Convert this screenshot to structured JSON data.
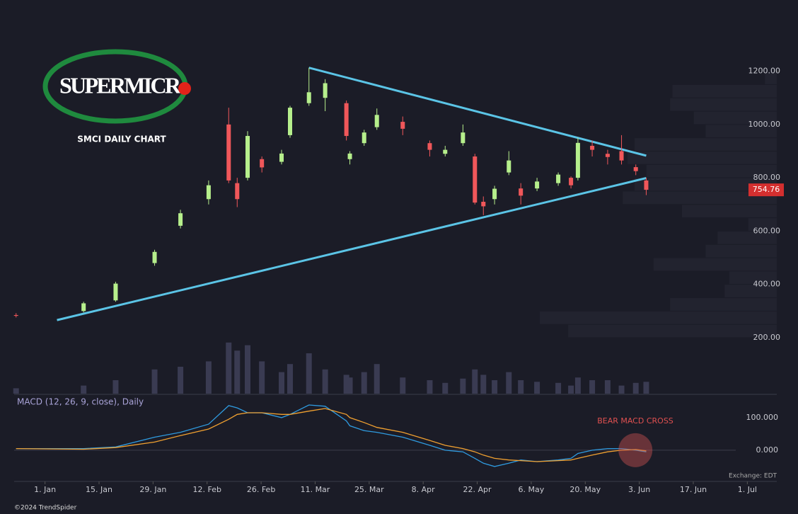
{
  "chart_data": {
    "type": "candlestick",
    "logo": "SUPERMICR",
    "title": "SMCI DAILY CHART",
    "macd_label": "MACD (12, 26, 9, close), Daily",
    "annotation": "BEAR MACD CROSS",
    "exchange": "Exchange: EDT",
    "copyright": "©2024 TrendSpider",
    "last_price": {
      "value": 754.76,
      "label": "754.76"
    },
    "up_color": "#b6ef8c",
    "down_color": "#f0575a",
    "xlim": [
      -8,
      190
    ],
    "xticks": [
      {
        "value": 0,
        "label": "1. Jan"
      },
      {
        "value": 14,
        "label": "15. Jan"
      },
      {
        "value": 28,
        "label": "29. Jan"
      },
      {
        "value": 42,
        "label": "12. Feb"
      },
      {
        "value": 56,
        "label": "26. Feb"
      },
      {
        "value": 70,
        "label": "11. Mar"
      },
      {
        "value": 84,
        "label": "25. Mar"
      },
      {
        "value": 98,
        "label": "8. Apr"
      },
      {
        "value": 112,
        "label": "22. Apr"
      },
      {
        "value": 126,
        "label": "6. May"
      },
      {
        "value": 140,
        "label": "20. May"
      },
      {
        "value": 154,
        "label": "3. Jun"
      },
      {
        "value": 168,
        "label": "17. Jun"
      },
      {
        "value": 182,
        "label": "1. Jul"
      }
    ],
    "ylim": [
      192,
      1414
    ],
    "yticks": [
      {
        "value": 200,
        "label": "200.00"
      },
      {
        "value": 400,
        "label": "400.00"
      },
      {
        "value": 600,
        "label": "600.00"
      },
      {
        "value": 800,
        "label": "800.00"
      },
      {
        "value": 1000,
        "label": "1000.00"
      },
      {
        "value": 1200,
        "label": "1200.00"
      }
    ],
    "candles": {
      "x": [
        -7.5,
        10,
        18.3,
        28.4,
        35.1,
        42.4,
        47.6,
        49.8,
        52.5,
        56.2,
        61.3,
        63.5,
        68.4,
        72.6,
        78.1,
        79,
        82.7,
        86,
        92.7,
        99.7,
        103.7,
        108.3,
        111.4,
        113.6,
        116.5,
        120.2,
        123.3,
        127.5,
        133,
        136.3,
        138.1,
        141.8,
        145.8,
        149.4,
        153.1,
        155.8
      ],
      "open": [
        285,
        300,
        340,
        480,
        620,
        720,
        1000,
        780,
        800,
        870,
        860,
        960,
        1080,
        1100,
        1080,
        870,
        930,
        990,
        1010,
        930,
        890,
        930,
        880,
        710,
        720,
        820,
        760,
        760,
        780,
        800,
        800,
        920,
        890,
        900,
        840,
        790
      ],
      "high": [
        292,
        335,
        410,
        530,
        680,
        790,
        1063,
        800,
        975,
        880,
        905,
        1070,
        1213,
        1170,
        1090,
        900,
        980,
        1060,
        1030,
        940,
        920,
        1000,
        890,
        730,
        770,
        900,
        780,
        800,
        820,
        805,
        950,
        940,
        905,
        960,
        850,
        800
      ],
      "low": [
        276,
        295,
        335,
        470,
        610,
        700,
        780,
        690,
        790,
        820,
        850,
        950,
        1070,
        1050,
        940,
        850,
        920,
        980,
        960,
        880,
        880,
        920,
        700,
        660,
        700,
        810,
        700,
        750,
        770,
        760,
        790,
        880,
        850,
        850,
        810,
        735
      ],
      "close": [
        282,
        329,
        403,
        522,
        667,
        772,
        790,
        720,
        957,
        839,
        891,
        1063,
        1121,
        1155,
        957,
        891,
        970,
        1036,
        984,
        905,
        905,
        970,
        707,
        693,
        759,
        865,
        733,
        786,
        812,
        772,
        931,
        905,
        878,
        865,
        825,
        755
      ]
    },
    "volume": [
      10,
      15,
      25,
      45,
      50,
      60,
      95,
      80,
      90,
      60,
      40,
      55,
      75,
      45,
      35,
      30,
      40,
      55,
      30,
      25,
      20,
      28,
      45,
      35,
      25,
      40,
      25,
      22,
      20,
      15,
      30,
      25,
      25,
      15,
      20,
      22
    ],
    "volume_ylim": [
      0,
      100
    ],
    "volume_color": "#3a3b52",
    "trendlines": [
      {
        "x": [
          68.4,
          155.8
        ],
        "y": [
          1213,
          883
        ]
      },
      {
        "x": [
          3.1,
          155.8
        ],
        "y": [
          266,
          799
        ]
      }
    ],
    "trendline_color": "#5bc4e6",
    "profile_bins": [
      200,
      250,
      300,
      350,
      400,
      450,
      500,
      550,
      600,
      650,
      700,
      750,
      800,
      850,
      900,
      950,
      1000,
      1050,
      1100,
      1150,
      1200
    ],
    "profile_values": [
      88,
      100,
      45,
      22,
      20,
      52,
      30,
      25,
      12,
      40,
      65,
      60,
      55,
      63,
      60,
      30,
      35,
      45,
      44,
      5
    ],
    "macd": {
      "ylim": [
        -96,
        165
      ],
      "yticks": [
        {
          "value": 0,
          "label": "0.000"
        },
        {
          "value": 100,
          "label": "100.000"
        }
      ],
      "series": [
        {
          "name": "MACD",
          "color": "#2f9be0",
          "values": [
            5,
            5,
            10,
            40,
            55,
            80,
            137,
            130,
            115,
            115,
            100,
            110,
            139,
            135,
            90,
            75,
            60,
            55,
            40,
            15,
            0,
            -5,
            -25,
            -40,
            -50,
            -40,
            -30,
            -35,
            -30,
            -25,
            -10,
            0,
            5,
            5,
            0,
            -5
          ]
        },
        {
          "name": "Signal",
          "color": "#f0a030",
          "values": [
            5,
            3,
            8,
            25,
            45,
            65,
            95,
            110,
            115,
            115,
            110,
            110,
            120,
            128,
            110,
            100,
            85,
            70,
            55,
            30,
            15,
            5,
            -5,
            -15,
            -25,
            -30,
            -32,
            -35,
            -32,
            -30,
            -25,
            -15,
            -5,
            0,
            2,
            -2
          ]
        }
      ],
      "cross": {
        "x": 153,
        "y": 0
      }
    }
  }
}
